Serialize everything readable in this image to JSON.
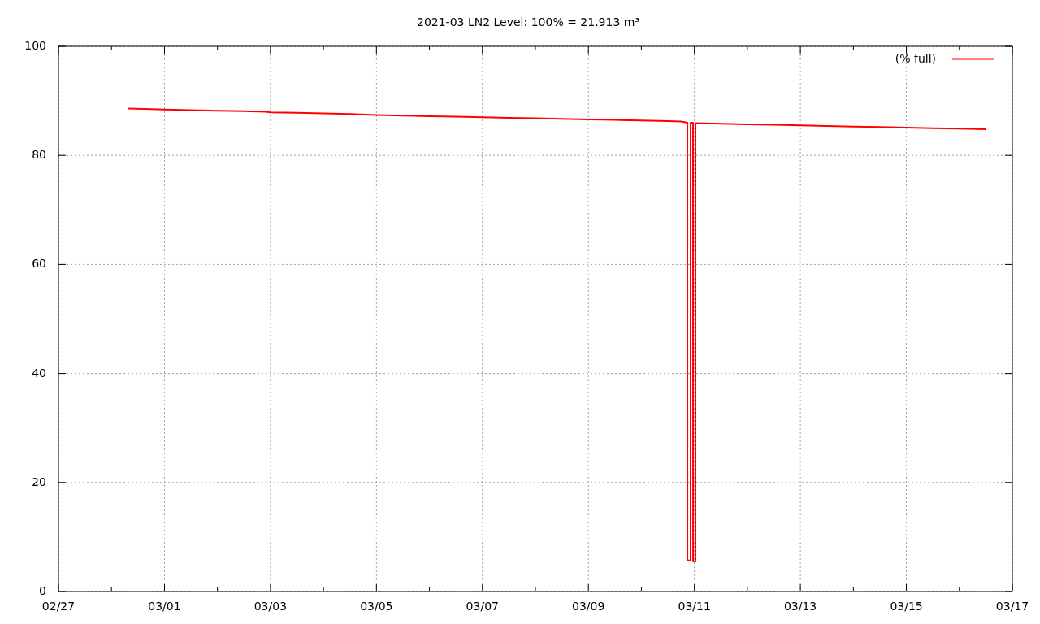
{
  "chart_data": {
    "type": "line",
    "title": "2021-03 LN2 Level: 100% = 21.913 m³",
    "series": [
      {
        "name": "(% full)",
        "color": "#ff0000",
        "x": [
          "2021-02-28T07:40",
          "2021-02-28T18:00",
          "2021-03-01T00:00",
          "2021-03-01T12:00",
          "2021-03-02T00:00",
          "2021-03-02T12:00",
          "2021-03-02T22:00",
          "2021-03-03T00:00",
          "2021-03-03T12:00",
          "2021-03-04T00:00",
          "2021-03-04T12:00",
          "2021-03-05T00:00",
          "2021-03-05T12:00",
          "2021-03-06T00:00",
          "2021-03-06T12:00",
          "2021-03-07T00:00",
          "2021-03-07T12:00",
          "2021-03-08T00:00",
          "2021-03-08T12:00",
          "2021-03-09T00:00",
          "2021-03-09T12:00",
          "2021-03-10T00:00",
          "2021-03-10T12:00",
          "2021-03-10T18:00",
          "2021-03-10T20:50",
          "2021-03-10T20:51",
          "2021-03-10T22:17",
          "2021-03-10T22:18",
          "2021-03-10T23:24",
          "2021-03-10T23:25",
          "2021-03-11T00:29",
          "2021-03-11T00:30",
          "2021-03-11T12:00",
          "2021-03-12T00:00",
          "2021-03-12T12:00",
          "2021-03-13T00:00",
          "2021-03-13T12:00",
          "2021-03-14T00:00",
          "2021-03-14T12:00",
          "2021-03-15T00:00",
          "2021-03-15T12:00",
          "2021-03-16T00:00",
          "2021-03-16T12:00"
        ],
        "values": [
          88.6,
          88.5,
          88.4,
          88.3,
          88.2,
          88.1,
          88.0,
          87.9,
          87.8,
          87.7,
          87.6,
          87.4,
          87.3,
          87.2,
          87.1,
          87.0,
          86.9,
          86.8,
          86.7,
          86.6,
          86.5,
          86.4,
          86.3,
          86.2,
          86.0,
          5.7,
          5.7,
          86.0,
          86.0,
          5.5,
          5.5,
          85.9,
          85.8,
          85.7,
          85.6,
          85.5,
          85.4,
          85.3,
          85.2,
          85.1,
          85.0,
          84.9,
          84.8
        ]
      }
    ],
    "xlim": [
      "2021-02-27",
      "2021-03-17"
    ],
    "xticks": [
      {
        "value": "2021-02-27",
        "label": "02/27"
      },
      {
        "value": "2021-02-28",
        "label": null
      },
      {
        "value": "2021-03-01",
        "label": "03/01"
      },
      {
        "value": "2021-03-02",
        "label": null
      },
      {
        "value": "2021-03-03",
        "label": "03/03"
      },
      {
        "value": "2021-03-04",
        "label": null
      },
      {
        "value": "2021-03-05",
        "label": "03/05"
      },
      {
        "value": "2021-03-06",
        "label": null
      },
      {
        "value": "2021-03-07",
        "label": "03/07"
      },
      {
        "value": "2021-03-08",
        "label": null
      },
      {
        "value": "2021-03-09",
        "label": "03/09"
      },
      {
        "value": "2021-03-10",
        "label": null
      },
      {
        "value": "2021-03-11",
        "label": "03/11"
      },
      {
        "value": "2021-03-12",
        "label": null
      },
      {
        "value": "2021-03-13",
        "label": "03/13"
      },
      {
        "value": "2021-03-14",
        "label": null
      },
      {
        "value": "2021-03-15",
        "label": "03/15"
      },
      {
        "value": "2021-03-16",
        "label": null
      },
      {
        "value": "2021-03-17",
        "label": "03/17"
      }
    ],
    "ylim": [
      0,
      100
    ],
    "yticks": [
      0,
      20,
      40,
      60,
      80,
      100
    ],
    "grid": true,
    "legend": "top right",
    "line_style": "solid"
  }
}
